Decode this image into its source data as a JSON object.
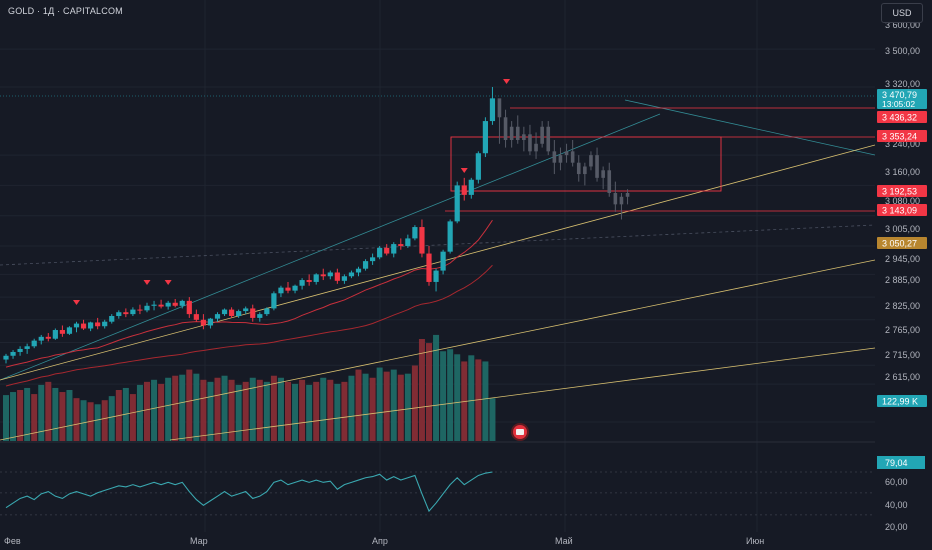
{
  "header": {
    "title": "GOLD · 1Д · CAPITALCOM",
    "currency": "USD"
  },
  "chart_data": {
    "type": "candlestick",
    "symbol": "GOLD",
    "timeframe": "1Д",
    "source": "CAPITALCOM",
    "x_labels": [
      "Фев",
      "Мар",
      "Апр",
      "Май",
      "Июн"
    ],
    "price_axis_ticks": [
      "3 600,00",
      "3 500,00",
      "3 320,00",
      "3 240,00",
      "3 160,00",
      "3 080,00",
      "3 005,00",
      "2 945,00",
      "2 885,00",
      "2 825,00",
      "2 765,00",
      "2 715,00",
      "2 615,00"
    ],
    "price_tags": [
      {
        "label": "3 470,79",
        "sub": "13:05:02",
        "color": "#22a6b5"
      },
      {
        "label": "3 436,32",
        "color": "#f23645"
      },
      {
        "label": "3 353,24",
        "color": "#f23645"
      },
      {
        "label": "3 192,53",
        "color": "#f23645"
      },
      {
        "label": "3 143,09",
        "color": "#f23645"
      },
      {
        "label": "3 050,27",
        "color": "#b8862f"
      },
      {
        "label": "122,99 K",
        "color": "#22a6b5"
      }
    ],
    "candles": [
      [
        2780,
        2795,
        2770,
        2790
      ],
      [
        2790,
        2805,
        2782,
        2800
      ],
      [
        2800,
        2815,
        2790,
        2808
      ],
      [
        2808,
        2822,
        2795,
        2815
      ],
      [
        2815,
        2835,
        2810,
        2830
      ],
      [
        2830,
        2845,
        2820,
        2840
      ],
      [
        2840,
        2850,
        2828,
        2835
      ],
      [
        2835,
        2862,
        2832,
        2858
      ],
      [
        2858,
        2870,
        2840,
        2848
      ],
      [
        2848,
        2868,
        2845,
        2865
      ],
      [
        2865,
        2880,
        2852,
        2875
      ],
      [
        2875,
        2885,
        2858,
        2862
      ],
      [
        2862,
        2880,
        2855,
        2878
      ],
      [
        2878,
        2890,
        2860,
        2868
      ],
      [
        2868,
        2885,
        2862,
        2880
      ],
      [
        2880,
        2900,
        2875,
        2895
      ],
      [
        2895,
        2910,
        2888,
        2905
      ],
      [
        2905,
        2915,
        2892,
        2900
      ],
      [
        2900,
        2918,
        2895,
        2912
      ],
      [
        2912,
        2925,
        2900,
        2910
      ],
      [
        2910,
        2930,
        2905,
        2922
      ],
      [
        2922,
        2935,
        2910,
        2925
      ],
      [
        2925,
        2938,
        2915,
        2920
      ],
      [
        2920,
        2935,
        2912,
        2930
      ],
      [
        2930,
        2940,
        2918,
        2922
      ],
      [
        2922,
        2938,
        2915,
        2935
      ],
      [
        2935,
        2945,
        2890,
        2900
      ],
      [
        2900,
        2912,
        2880,
        2885
      ],
      [
        2885,
        2900,
        2860,
        2870
      ],
      [
        2870,
        2890,
        2862,
        2888
      ],
      [
        2888,
        2905,
        2880,
        2900
      ],
      [
        2900,
        2915,
        2895,
        2912
      ],
      [
        2912,
        2918,
        2890,
        2895
      ],
      [
        2895,
        2912,
        2890,
        2908
      ],
      [
        2908,
        2920,
        2900,
        2915
      ],
      [
        2915,
        2925,
        2880,
        2890
      ],
      [
        2890,
        2905,
        2880,
        2900
      ],
      [
        2900,
        2918,
        2895,
        2915
      ],
      [
        2915,
        2960,
        2910,
        2955
      ],
      [
        2955,
        2975,
        2945,
        2970
      ],
      [
        2970,
        2985,
        2955,
        2962
      ],
      [
        2962,
        2978,
        2955,
        2975
      ],
      [
        2975,
        2995,
        2965,
        2990
      ],
      [
        2990,
        3005,
        2975,
        2985
      ],
      [
        2985,
        3008,
        2978,
        3005
      ],
      [
        3005,
        3020,
        2990,
        3000
      ],
      [
        3000,
        3015,
        2992,
        3010
      ],
      [
        3010,
        3020,
        2980,
        2988
      ],
      [
        2988,
        3005,
        2980,
        3000
      ],
      [
        3000,
        3015,
        2995,
        3010
      ],
      [
        3010,
        3025,
        3000,
        3020
      ],
      [
        3020,
        3045,
        3015,
        3040
      ],
      [
        3040,
        3060,
        3030,
        3050
      ],
      [
        3050,
        3080,
        3045,
        3075
      ],
      [
        3075,
        3085,
        3055,
        3060
      ],
      [
        3060,
        3090,
        3050,
        3085
      ],
      [
        3085,
        3100,
        3070,
        3080
      ],
      [
        3080,
        3110,
        3075,
        3100
      ],
      [
        3100,
        3135,
        3095,
        3130
      ],
      [
        3130,
        3150,
        3050,
        3060
      ],
      [
        3060,
        3080,
        2975,
        2985
      ],
      [
        2985,
        3020,
        2960,
        3015
      ],
      [
        3015,
        3070,
        3005,
        3065
      ],
      [
        3065,
        3150,
        3060,
        3145
      ],
      [
        3145,
        3250,
        3140,
        3240
      ],
      [
        3240,
        3260,
        3200,
        3215
      ],
      [
        3215,
        3260,
        3205,
        3255
      ],
      [
        3255,
        3330,
        3245,
        3325
      ],
      [
        3325,
        3420,
        3315,
        3410
      ],
      [
        3410,
        3500,
        3400,
        3470
      ]
    ],
    "ghost_candles": [
      [
        3470,
        3440,
        3350,
        3420
      ],
      [
        3420,
        3440,
        3340,
        3360
      ],
      [
        3360,
        3410,
        3340,
        3395
      ],
      [
        3395,
        3425,
        3350,
        3360
      ],
      [
        3360,
        3395,
        3330,
        3375
      ],
      [
        3375,
        3400,
        3320,
        3330
      ],
      [
        3330,
        3380,
        3310,
        3350
      ],
      [
        3350,
        3410,
        3340,
        3395
      ],
      [
        3395,
        3410,
        3320,
        3330
      ],
      [
        3330,
        3360,
        3270,
        3300
      ],
      [
        3300,
        3340,
        3280,
        3320
      ],
      [
        3320,
        3350,
        3300,
        3330
      ],
      [
        3330,
        3360,
        3290,
        3300
      ],
      [
        3300,
        3320,
        3250,
        3270
      ],
      [
        3270,
        3300,
        3240,
        3290
      ],
      [
        3290,
        3330,
        3280,
        3320
      ],
      [
        3320,
        3340,
        3250,
        3260
      ],
      [
        3260,
        3290,
        3230,
        3280
      ],
      [
        3280,
        3300,
        3210,
        3220
      ],
      [
        3220,
        3250,
        3170,
        3190
      ],
      [
        3190,
        3220,
        3150,
        3210
      ],
      [
        3210,
        3230,
        3190,
        3220
      ]
    ],
    "volume": [
      {
        "v": 45,
        "d": "up"
      },
      {
        "v": 48,
        "d": "up"
      },
      {
        "v": 50,
        "d": "down"
      },
      {
        "v": 52,
        "d": "up"
      },
      {
        "v": 46,
        "d": "down"
      },
      {
        "v": 55,
        "d": "up"
      },
      {
        "v": 58,
        "d": "down"
      },
      {
        "v": 52,
        "d": "up"
      },
      {
        "v": 48,
        "d": "down"
      },
      {
        "v": 50,
        "d": "up"
      },
      {
        "v": 42,
        "d": "down"
      },
      {
        "v": 40,
        "d": "up"
      },
      {
        "v": 38,
        "d": "down"
      },
      {
        "v": 36,
        "d": "up"
      },
      {
        "v": 40,
        "d": "down"
      },
      {
        "v": 44,
        "d": "up"
      },
      {
        "v": 50,
        "d": "down"
      },
      {
        "v": 52,
        "d": "up"
      },
      {
        "v": 46,
        "d": "down"
      },
      {
        "v": 55,
        "d": "up"
      },
      {
        "v": 58,
        "d": "down"
      },
      {
        "v": 60,
        "d": "up"
      },
      {
        "v": 56,
        "d": "down"
      },
      {
        "v": 62,
        "d": "up"
      },
      {
        "v": 64,
        "d": "down"
      },
      {
        "v": 65,
        "d": "up"
      },
      {
        "v": 70,
        "d": "down"
      },
      {
        "v": 66,
        "d": "up"
      },
      {
        "v": 60,
        "d": "down"
      },
      {
        "v": 58,
        "d": "up"
      },
      {
        "v": 62,
        "d": "down"
      },
      {
        "v": 64,
        "d": "up"
      },
      {
        "v": 60,
        "d": "down"
      },
      {
        "v": 55,
        "d": "up"
      },
      {
        "v": 58,
        "d": "down"
      },
      {
        "v": 62,
        "d": "up"
      },
      {
        "v": 60,
        "d": "down"
      },
      {
        "v": 58,
        "d": "up"
      },
      {
        "v": 64,
        "d": "down"
      },
      {
        "v": 62,
        "d": "up"
      },
      {
        "v": 58,
        "d": "down"
      },
      {
        "v": 56,
        "d": "up"
      },
      {
        "v": 60,
        "d": "down"
      },
      {
        "v": 55,
        "d": "up"
      },
      {
        "v": 58,
        "d": "down"
      },
      {
        "v": 62,
        "d": "up"
      },
      {
        "v": 60,
        "d": "down"
      },
      {
        "v": 56,
        "d": "up"
      },
      {
        "v": 58,
        "d": "down"
      },
      {
        "v": 64,
        "d": "up"
      },
      {
        "v": 70,
        "d": "down"
      },
      {
        "v": 66,
        "d": "up"
      },
      {
        "v": 62,
        "d": "down"
      },
      {
        "v": 72,
        "d": "up"
      },
      {
        "v": 68,
        "d": "down"
      },
      {
        "v": 70,
        "d": "up"
      },
      {
        "v": 65,
        "d": "down"
      },
      {
        "v": 66,
        "d": "up"
      },
      {
        "v": 74,
        "d": "down"
      },
      {
        "v": 100,
        "d": "down"
      },
      {
        "v": 96,
        "d": "down"
      },
      {
        "v": 104,
        "d": "up"
      },
      {
        "v": 88,
        "d": "up"
      },
      {
        "v": 90,
        "d": "up"
      },
      {
        "v": 85,
        "d": "up"
      },
      {
        "v": 78,
        "d": "down"
      },
      {
        "v": 84,
        "d": "up"
      },
      {
        "v": 80,
        "d": "down"
      },
      {
        "v": 78,
        "d": "up"
      },
      {
        "v": 42,
        "d": "up"
      }
    ],
    "rsi_ticks": [
      "79,04",
      "60,00",
      "40,00",
      "20,00"
    ],
    "rsi": [
      48,
      52,
      56,
      58,
      55,
      60,
      62,
      58,
      56,
      60,
      62,
      60,
      58,
      61,
      63,
      65,
      67,
      66,
      68,
      66,
      68,
      70,
      68,
      70,
      68,
      70,
      62,
      55,
      50,
      54,
      58,
      62,
      58,
      60,
      62,
      56,
      58,
      62,
      70,
      72,
      68,
      70,
      72,
      70,
      72,
      70,
      71,
      64,
      68,
      70,
      72,
      74,
      75,
      77,
      72,
      75,
      72,
      74,
      76,
      60,
      45,
      52,
      60,
      68,
      74,
      68,
      72,
      76,
      78,
      79
    ]
  },
  "colors": {
    "up": "#22a6b5",
    "down": "#f23645",
    "ma_red": "#c8303c",
    "ma_yellow": "#d8c070",
    "channel_teal": "#3aa8b0",
    "bg": "#161a25",
    "grid": "#1f2430"
  }
}
